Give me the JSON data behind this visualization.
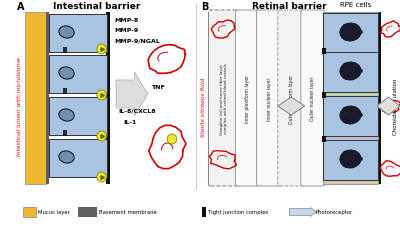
{
  "title_a": "Intestinal barrier",
  "title_b": "Retinal barrier",
  "label_a": "A",
  "label_b": "B",
  "intestinal_lumen_text": "Intestinal lumen with microbiome",
  "sterile_vitreous_text": "Sterile vitreous fluid",
  "rpe_cells_text": "RPE cells",
  "choroidal_text": "Choroidal circulation",
  "mmp8": "MMP-8",
  "mmp9": "MMP-9",
  "mmp9ngal": "MMP-9/NGAL",
  "tnf": "TNF",
  "il8": "IL-8/CXCL8",
  "il1": "IL-1",
  "legend_mucus": "Mucus layer",
  "legend_basement": "Basement membrane",
  "legend_tight": "Tight junction complex",
  "legend_photo": "Photoreceptor",
  "bg_color": "#ffffff",
  "mucus_color": "#f0b830",
  "cell_color": "#a8c4e0",
  "cell_dark_color": "#6688aa",
  "basement_color": "#606060",
  "red_outline": "#cc0000",
  "yellow_cell_color": "#e8e830",
  "layer1_color": "#f5f5f5",
  "layer2_color": "#f0f8ff",
  "layer3_color": "#f8f8f8",
  "layer4_color": "#f0f8ff",
  "layer5_color": "#f5f5f5",
  "photo_stripe_colors": [
    "#c8d8b0",
    "#d8c8a8",
    "#b8c8d8",
    "#c8b8d8",
    "#d8d8c8"
  ],
  "rpe_color": "#a8c4e0",
  "rpe_nucleus_color": "#1a1a2e"
}
